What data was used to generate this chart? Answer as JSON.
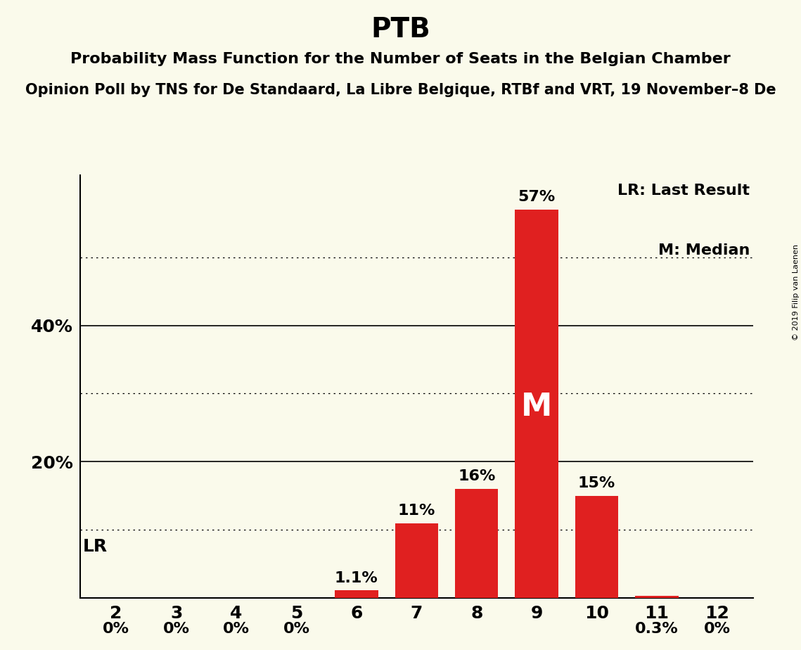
{
  "title": "PTB",
  "subtitle": "Probability Mass Function for the Number of Seats in the Belgian Chamber",
  "poll_line": "Opinion Poll by TNS for De Standaard, La Libre Belgique, RTBf and VRT, 19 November–8 De",
  "copyright": "© 2019 Filip van Laenen",
  "categories": [
    2,
    3,
    4,
    5,
    6,
    7,
    8,
    9,
    10,
    11,
    12
  ],
  "values": [
    0.0,
    0.0,
    0.0,
    0.0,
    1.1,
    11.0,
    16.0,
    57.0,
    15.0,
    0.3,
    0.0
  ],
  "labels": [
    "0%",
    "0%",
    "0%",
    "0%",
    "1.1%",
    "11%",
    "16%",
    "57%",
    "15%",
    "0.3%",
    "0%"
  ],
  "bar_color": "#e02020",
  "background_color": "#fafaeb",
  "ylim": [
    0,
    62
  ],
  "dotted_lines": [
    10,
    30,
    50
  ],
  "solid_lines": [
    20,
    40
  ],
  "median_seat": 9,
  "legend_lr": "LR: Last Result",
  "legend_m": "M: Median",
  "title_fontsize": 28,
  "subtitle_fontsize": 16,
  "poll_fontsize": 15,
  "bar_label_fontsize": 16,
  "axis_fontsize": 18,
  "legend_fontsize": 16,
  "lr_label_fontsize": 18,
  "m_fontsize": 32,
  "copyright_fontsize": 8
}
